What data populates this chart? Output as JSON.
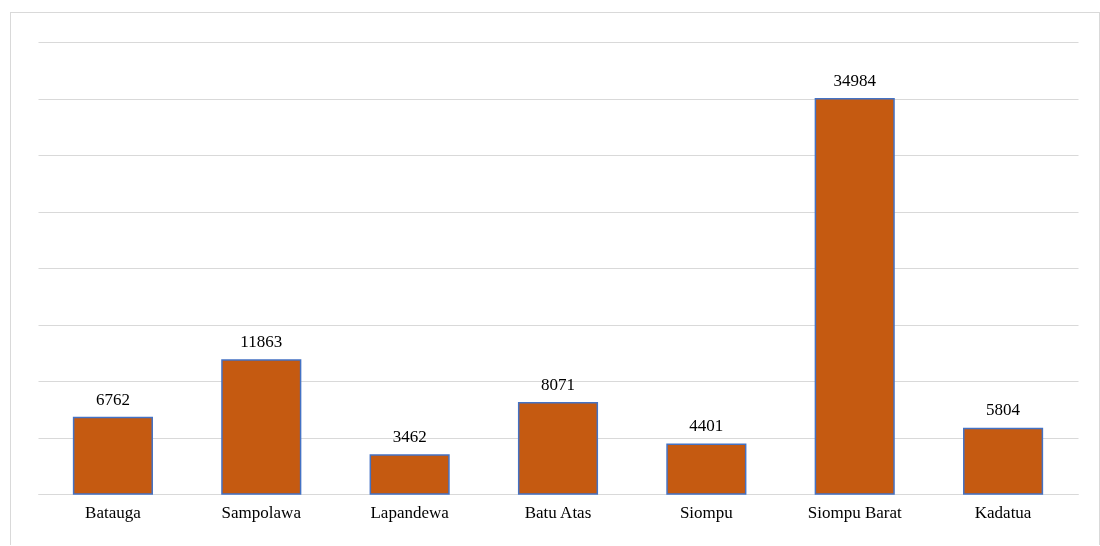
{
  "chart_data": {
    "type": "bar",
    "categories": [
      "Batauga",
      "Sampolawa",
      "Lapandewa",
      "Batu Atas",
      "Siompu",
      "Siompu Barat",
      "Kadatua"
    ],
    "values": [
      6762,
      11863,
      3462,
      8071,
      4401,
      34984,
      5804
    ],
    "color": "#c55a11",
    "ylim": [
      0,
      40000
    ],
    "yticks": [
      {
        "value": 0,
        "label": null
      },
      {
        "value": 5000,
        "label": null
      },
      {
        "value": 10000,
        "label": null
      },
      {
        "value": 15000,
        "label": null
      },
      {
        "value": 20000,
        "label": null
      },
      {
        "value": 25000,
        "label": null
      },
      {
        "value": 30000,
        "label": null
      },
      {
        "value": 35000,
        "label": null
      },
      {
        "value": 40000,
        "label": null
      }
    ],
    "grid": "y",
    "tick_labels": "x",
    "data_labels": true
  }
}
